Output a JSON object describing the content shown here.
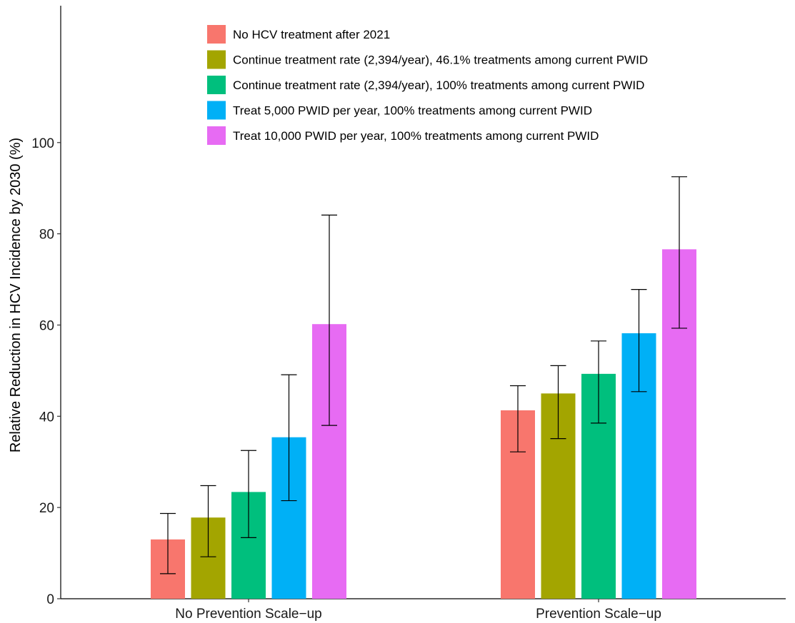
{
  "chart_data": {
    "type": "bar",
    "title": "",
    "xlabel": "",
    "ylabel": "Relative Reduction in HCV Incidence by 2030 (%)",
    "ylim": [
      0,
      130
    ],
    "yticks": [
      0,
      20,
      40,
      60,
      80,
      100
    ],
    "grid": false,
    "legend_position": "top-left",
    "error_bars": true,
    "categories": [
      "No Prevention Scale−up",
      "Prevention Scale−up"
    ],
    "series": [
      {
        "name": "No HCV treatment after 2021",
        "color": "#F8766D",
        "values": [
          13.0,
          41.3
        ],
        "lower": [
          5.5,
          32.2
        ],
        "upper": [
          18.7,
          46.7
        ]
      },
      {
        "name": "Continue treatment rate (2,394/year), 46.1% treatments among current PWID",
        "color": "#A3A500",
        "values": [
          17.8,
          45.0
        ],
        "lower": [
          9.2,
          35.1
        ],
        "upper": [
          24.8,
          51.1
        ]
      },
      {
        "name": "Continue treatment rate (2,394/year), 100% treatments among current PWID",
        "color": "#00BF7D",
        "values": [
          23.4,
          49.3
        ],
        "lower": [
          13.4,
          38.5
        ],
        "upper": [
          32.5,
          56.5
        ]
      },
      {
        "name": "Treat 5,000 PWID per year, 100% treatments among current PWID",
        "color": "#00B0F6",
        "values": [
          35.4,
          58.2
        ],
        "lower": [
          21.5,
          45.4
        ],
        "upper": [
          49.1,
          67.8
        ]
      },
      {
        "name": "Treat 10,000 PWID per year, 100% treatments among current PWID",
        "color": "#E76BF3",
        "values": [
          60.2,
          76.6
        ],
        "lower": [
          38.0,
          59.3
        ],
        "upper": [
          84.1,
          92.5
        ]
      }
    ]
  }
}
